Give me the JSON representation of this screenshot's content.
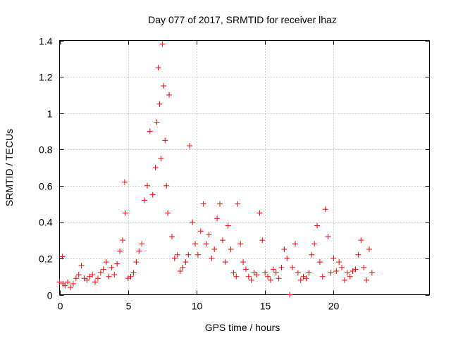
{
  "chart_data": {
    "type": "scatter",
    "title": "Day 077 of 2017, SRMTID for receiver lhaz",
    "xlabel": "GPS time / hours",
    "ylabel": "SRMTID / TECUs",
    "xlim": [
      0,
      27
    ],
    "ylim": [
      0,
      1.4
    ],
    "xticks": [
      0,
      5,
      10,
      15,
      20
    ],
    "yticks": [
      0,
      0.2,
      0.4,
      0.6,
      0.8,
      1,
      1.2,
      1.4
    ],
    "xtick_labels": [
      "0",
      "5",
      "10",
      "15",
      "20"
    ],
    "ytick_labels": [
      "0",
      "0.2",
      "0.4",
      "0.6",
      "0.8",
      "1",
      "1.2",
      "1.4"
    ],
    "grid": true,
    "marker": "plus",
    "color": "#ff0000",
    "series": [
      {
        "name": "SRMTID",
        "x": [
          0.0,
          0.2,
          0.25,
          0.4,
          0.6,
          0.8,
          1.0,
          1.2,
          1.4,
          1.6,
          1.8,
          2.0,
          2.2,
          2.4,
          2.6,
          2.8,
          3.0,
          3.2,
          3.4,
          3.6,
          3.8,
          4.0,
          4.2,
          4.4,
          4.6,
          4.75,
          4.8,
          5.0,
          5.2,
          5.4,
          5.6,
          5.8,
          6.0,
          6.2,
          6.4,
          6.6,
          6.8,
          7.0,
          7.1,
          7.2,
          7.3,
          7.4,
          7.5,
          7.6,
          7.7,
          7.8,
          7.9,
          8.0,
          8.2,
          8.4,
          8.6,
          8.8,
          9.0,
          9.2,
          9.4,
          9.5,
          9.7,
          9.9,
          10.1,
          10.3,
          10.5,
          10.7,
          10.9,
          11.1,
          11.3,
          11.5,
          11.7,
          11.9,
          12.1,
          12.3,
          12.5,
          12.7,
          12.9,
          13.0,
          13.2,
          13.4,
          13.6,
          13.8,
          14.0,
          14.2,
          14.4,
          14.6,
          14.8,
          15.0,
          15.2,
          15.4,
          15.6,
          15.8,
          16.0,
          16.2,
          16.4,
          16.6,
          16.8,
          17.0,
          17.2,
          17.4,
          17.6,
          17.8,
          18.0,
          18.2,
          18.4,
          18.6,
          18.8,
          19.0,
          19.2,
          19.4,
          19.6,
          19.8,
          20.0,
          20.2,
          20.4,
          20.6,
          20.8,
          21.0,
          21.2,
          21.4,
          21.6,
          21.8,
          22.0,
          22.2,
          22.4,
          22.6,
          22.8
        ],
        "y": [
          0.07,
          0.21,
          0.06,
          0.05,
          0.07,
          0.04,
          0.06,
          0.09,
          0.11,
          0.16,
          0.09,
          0.08,
          0.1,
          0.11,
          0.07,
          0.09,
          0.12,
          0.14,
          0.18,
          0.1,
          0.15,
          0.11,
          0.17,
          0.24,
          0.3,
          0.62,
          0.45,
          0.09,
          0.1,
          0.12,
          0.18,
          0.24,
          0.28,
          0.52,
          0.6,
          0.9,
          0.55,
          0.7,
          0.95,
          1.25,
          1.05,
          0.75,
          1.38,
          1.15,
          0.85,
          0.6,
          0.45,
          1.1,
          0.32,
          0.2,
          0.22,
          0.13,
          0.15,
          0.18,
          0.22,
          0.82,
          0.4,
          0.28,
          0.22,
          0.35,
          0.5,
          0.28,
          0.33,
          0.2,
          0.25,
          0.42,
          0.5,
          0.3,
          0.18,
          0.38,
          0.25,
          0.12,
          0.1,
          0.5,
          0.28,
          0.18,
          0.14,
          0.1,
          0.08,
          0.12,
          0.11,
          0.45,
          0.3,
          0.12,
          0.1,
          0.08,
          0.14,
          0.12,
          0.09,
          0.15,
          0.25,
          0.2,
          0.0,
          0.15,
          0.28,
          0.12,
          0.08,
          0.1,
          0.09,
          0.12,
          0.22,
          0.28,
          0.38,
          0.18,
          0.1,
          0.47,
          0.32,
          0.12,
          0.2,
          0.13,
          0.18,
          0.15,
          0.08,
          0.12,
          0.1,
          0.13,
          0.14,
          0.22,
          0.3,
          0.15,
          0.08,
          0.25,
          0.12
        ]
      }
    ]
  }
}
